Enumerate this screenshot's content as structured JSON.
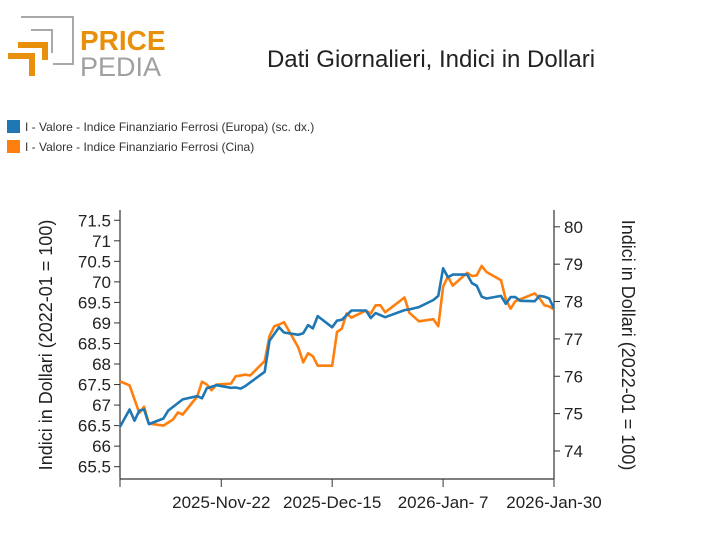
{
  "logo": {
    "line1": "PRICE",
    "line2": "PEDIA",
    "colors": {
      "orange": "#e8900c",
      "gray": "#a0a0a0"
    }
  },
  "chart_data": {
    "type": "line",
    "title": "Dati Giornalieri, Indici in Dollari",
    "ylabel_left": "Indici in Dollari (2022-01 = 100)",
    "ylabel_right": "Indici in Dollari (2022-01 = 100)",
    "xlim": [
      "2025-11-01",
      "2026-01-30"
    ],
    "ylim_left": [
      65.2,
      71.75
    ],
    "ylim_right": [
      73.25,
      80.45
    ],
    "x_ticks": [
      {
        "date": "2025-11-22",
        "label": "2025-Nov-22"
      },
      {
        "date": "2025-12-15",
        "label": "2025-Dec-15"
      },
      {
        "date": "2026-01-07",
        "label": "2026-Jan- 7"
      },
      {
        "date": "2026-01-30",
        "label": "2026-Jan-30"
      }
    ],
    "y_ticks_left": [
      "65.5",
      "66",
      "66.5",
      "67",
      "67.5",
      "68",
      "68.5",
      "69",
      "69.5",
      "70",
      "70.5",
      "71",
      "71.5"
    ],
    "y_ticks_right": [
      "74",
      "75",
      "76",
      "77",
      "78",
      "79",
      "80"
    ],
    "grid": false,
    "legend_position": "top-left",
    "series": [
      {
        "name": "I - Valore - Indice Finanziario Ferrosi (Europa) (sc. dx.)",
        "axis": "right",
        "color": "#1f77b4",
        "points": [
          [
            "2025-11-01",
            74.65
          ],
          [
            "2025-11-03",
            75.11
          ],
          [
            "2025-11-04",
            74.81
          ],
          [
            "2025-11-05",
            75.08
          ],
          [
            "2025-11-06",
            75.11
          ],
          [
            "2025-11-07",
            74.72
          ],
          [
            "2025-11-10",
            74.87
          ],
          [
            "2025-11-11",
            75.08
          ],
          [
            "2025-11-14",
            75.38
          ],
          [
            "2025-11-17",
            75.47
          ],
          [
            "2025-11-18",
            75.41
          ],
          [
            "2025-11-19",
            75.68
          ],
          [
            "2025-11-21",
            75.76
          ],
          [
            "2025-11-24",
            75.69
          ],
          [
            "2025-11-25",
            75.7
          ],
          [
            "2025-11-26",
            75.67
          ],
          [
            "2025-11-27",
            75.74
          ],
          [
            "2025-12-01",
            76.12
          ],
          [
            "2025-12-02",
            76.95
          ],
          [
            "2025-12-04",
            77.31
          ],
          [
            "2025-12-05",
            77.17
          ],
          [
            "2025-12-08",
            77.11
          ],
          [
            "2025-12-09",
            77.15
          ],
          [
            "2025-12-10",
            77.37
          ],
          [
            "2025-12-11",
            77.28
          ],
          [
            "2025-12-12",
            77.61
          ],
          [
            "2025-12-15",
            77.31
          ],
          [
            "2025-12-16",
            77.49
          ],
          [
            "2025-12-17",
            77.51
          ],
          [
            "2025-12-19",
            77.76
          ],
          [
            "2025-12-22",
            77.76
          ],
          [
            "2025-12-23",
            77.56
          ],
          [
            "2025-12-24",
            77.69
          ],
          [
            "2025-12-26",
            77.58
          ],
          [
            "2025-12-30",
            77.77
          ],
          [
            "2025-12-31",
            77.79
          ],
          [
            "2026-01-02",
            77.85
          ],
          [
            "2026-01-05",
            78.04
          ],
          [
            "2026-01-06",
            78.15
          ],
          [
            "2026-01-07",
            78.89
          ],
          [
            "2026-01-08",
            78.65
          ],
          [
            "2026-01-09",
            78.72
          ],
          [
            "2026-01-12",
            78.72
          ],
          [
            "2026-01-13",
            78.49
          ],
          [
            "2026-01-14",
            78.42
          ],
          [
            "2026-01-15",
            78.13
          ],
          [
            "2026-01-16",
            78.08
          ],
          [
            "2026-01-19",
            78.15
          ],
          [
            "2026-01-20",
            77.94
          ],
          [
            "2026-01-21",
            78.12
          ],
          [
            "2026-01-22",
            78.12
          ],
          [
            "2026-01-23",
            78.02
          ],
          [
            "2026-01-26",
            78.01
          ],
          [
            "2026-01-27",
            78.15
          ],
          [
            "2026-01-28",
            78.13
          ],
          [
            "2026-01-29",
            78.08
          ],
          [
            "2026-01-30",
            77.81
          ]
        ]
      },
      {
        "name": "I - Valore - Indice Finanziario Ferrosi (Cina)",
        "axis": "left",
        "color": "#ff7f0e",
        "points": [
          [
            "2025-11-01",
            67.58
          ],
          [
            "2025-11-03",
            67.48
          ],
          [
            "2025-11-05",
            66.81
          ],
          [
            "2025-11-06",
            66.96
          ],
          [
            "2025-11-07",
            66.55
          ],
          [
            "2025-11-10",
            66.5
          ],
          [
            "2025-11-12",
            66.65
          ],
          [
            "2025-11-13",
            66.82
          ],
          [
            "2025-11-14",
            66.77
          ],
          [
            "2025-11-17",
            67.21
          ],
          [
            "2025-11-18",
            67.57
          ],
          [
            "2025-11-19",
            67.5
          ],
          [
            "2025-11-20",
            67.36
          ],
          [
            "2025-11-21",
            67.5
          ],
          [
            "2025-11-24",
            67.52
          ],
          [
            "2025-11-25",
            67.7
          ],
          [
            "2025-11-27",
            67.74
          ],
          [
            "2025-11-28",
            67.72
          ],
          [
            "2025-12-01",
            68.07
          ],
          [
            "2025-12-02",
            68.68
          ],
          [
            "2025-12-03",
            68.92
          ],
          [
            "2025-12-04",
            68.96
          ],
          [
            "2025-12-05",
            69.02
          ],
          [
            "2025-12-08",
            68.4
          ],
          [
            "2025-12-09",
            68.04
          ],
          [
            "2025-12-10",
            68.26
          ],
          [
            "2025-12-11",
            68.19
          ],
          [
            "2025-12-12",
            67.96
          ],
          [
            "2025-12-15",
            67.96
          ],
          [
            "2025-12-16",
            68.78
          ],
          [
            "2025-12-17",
            68.86
          ],
          [
            "2025-12-18",
            69.23
          ],
          [
            "2025-12-19",
            69.13
          ],
          [
            "2025-12-22",
            69.3
          ],
          [
            "2025-12-23",
            69.23
          ],
          [
            "2025-12-24",
            69.43
          ],
          [
            "2025-12-25",
            69.43
          ],
          [
            "2025-12-26",
            69.26
          ],
          [
            "2025-12-30",
            69.62
          ],
          [
            "2025-12-31",
            69.25
          ],
          [
            "2026-01-02",
            69.04
          ],
          [
            "2026-01-05",
            69.09
          ],
          [
            "2026-01-06",
            68.92
          ],
          [
            "2026-01-07",
            69.88
          ],
          [
            "2026-01-08",
            70.13
          ],
          [
            "2026-01-09",
            69.91
          ],
          [
            "2026-01-12",
            70.22
          ],
          [
            "2026-01-13",
            70.14
          ],
          [
            "2026-01-14",
            70.16
          ],
          [
            "2026-01-15",
            70.39
          ],
          [
            "2026-01-16",
            70.24
          ],
          [
            "2026-01-19",
            70.04
          ],
          [
            "2026-01-20",
            69.57
          ],
          [
            "2026-01-21",
            69.35
          ],
          [
            "2026-01-22",
            69.53
          ],
          [
            "2026-01-26",
            69.72
          ],
          [
            "2026-01-27",
            69.6
          ],
          [
            "2026-01-28",
            69.43
          ],
          [
            "2026-01-29",
            69.4
          ],
          [
            "2026-01-30",
            69.33
          ]
        ]
      }
    ]
  }
}
